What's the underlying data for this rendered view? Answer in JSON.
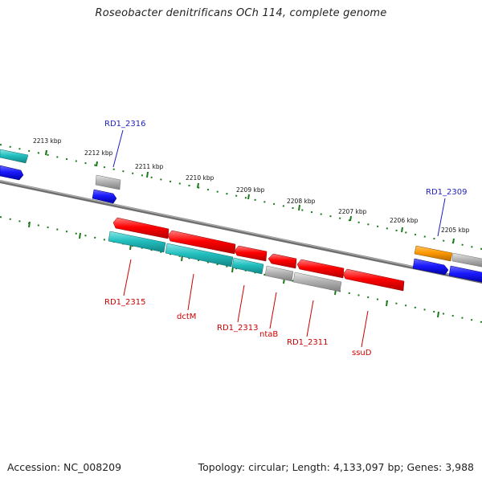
{
  "title": "Roseobacter denitrificans OCh 114, complete genome",
  "footer": {
    "accession": "Accession: NC_008209",
    "summary": "Topology: circular; Length: 4,133,097 bp; Genes: 3,988"
  },
  "scale": {
    "labels": [
      "2213 kbp",
      "2212 kbp",
      "2211 kbp",
      "2210 kbp",
      "2209 kbp",
      "2208 kbp",
      "2207 kbp",
      "2206 kbp",
      "2205 kbp"
    ]
  },
  "genes": {
    "above": [
      "RD1_2316",
      "RD1_2309"
    ],
    "below": [
      "RD1_2315",
      "dctM",
      "RD1_2313",
      "ntaB",
      "RD1_2311",
      "ssuD"
    ]
  },
  "colors": {
    "backbone": "#808080",
    "tick": "#1a7a1a",
    "label_above": "#1f1fbf",
    "label_below": "#cc0000",
    "forward_gene": "#1a1aff",
    "reverse_gene": "#ff0000",
    "cds_cyan": "#22bfbf",
    "cds_gray": "#b3b3b3",
    "cds_orange": "#ff9900"
  }
}
